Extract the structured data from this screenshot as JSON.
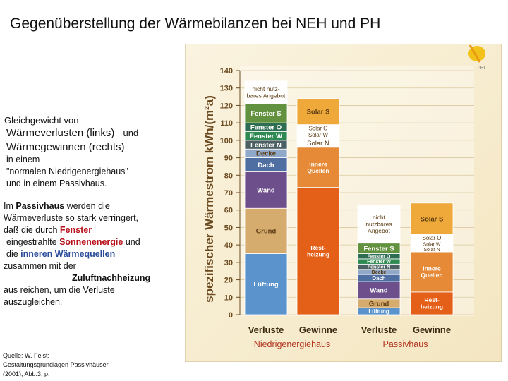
{
  "slide": {
    "title": "Gegenüberstellung der Wärmebilanzen bei NEH und  PH",
    "intro_line1": "Gleichgewicht von",
    "intro_line2a": "Wärmeverlusten (links)",
    "intro_line2b": "und",
    "intro_line3": "Wärmegewinnen (rechts)",
    "intro_line4": "in einem",
    "intro_line5": "\"normalen Niedrigenergiehaus\"",
    "intro_line6": "und in einem   Passivhaus.",
    "para": {
      "p1": "Im ",
      "p2": "Passivhaus",
      "p3": " werden die",
      "p4": "Wärmeverluste so stark  verringert,",
      "p5": "daß die durch ",
      "p6": "Fenster",
      "p7": "eingestrahlte ",
      "p8": "Sonnenenergie",
      "p9": " und",
      "p10": "die ",
      "p11": "inneren Wärmequellen",
      "p12": "zusammen mit der",
      "p13": "Zuluftnachheizung",
      "p14": "aus reichen, um die Verluste",
      "p15": "auszugleichen."
    },
    "source1": "Quelle: W. Feist:",
    "source2": "Gestaltungsgrundlagen Passivhäuser,",
    "source3": "(2001), Abb.3, p."
  },
  "logo_text": "PHI",
  "chart_data": {
    "type": "bar",
    "title": "",
    "ylabel": "spezifischer Wärmestrom kWh/(m²a)",
    "ylim": [
      0,
      140
    ],
    "yticks": [
      0,
      10,
      20,
      30,
      40,
      50,
      60,
      70,
      80,
      90,
      100,
      110,
      120,
      130,
      140
    ],
    "categories": [
      "Verluste",
      "Gewinne",
      "Verluste",
      "Gewinne"
    ],
    "groups": [
      "Niedrigenergiehaus",
      "Passivhaus"
    ],
    "columns": [
      {
        "category": "Verluste",
        "group": "Niedrigenergiehaus",
        "segments": [
          {
            "label": "Lüftung",
            "value": 35,
            "color": "#5b93cd"
          },
          {
            "label": "Grund",
            "value": 26,
            "color": "#d6ab6e"
          },
          {
            "label": "Wand",
            "value": 21,
            "color": "#6d4f8c"
          },
          {
            "label": "Dach",
            "value": 8,
            "color": "#4f6fa2"
          },
          {
            "label": "Decke",
            "value": 5,
            "color": "#90a9c9"
          },
          {
            "label": "Fenster N",
            "value": 5,
            "color": "#4c5f62"
          },
          {
            "label": "Fenster W",
            "value": 5,
            "color": "#2f8a52"
          },
          {
            "label": "Fenster O",
            "value": 5,
            "color": "#2d6e53"
          },
          {
            "label": "Fenster S",
            "value": 11,
            "color": "#62913f"
          },
          {
            "label": "nicht nutz-bares Angebot",
            "value": 13,
            "color": "#ffffff"
          }
        ]
      },
      {
        "category": "Gewinne",
        "group": "Niedrigenergiehaus",
        "segments": [
          {
            "label": "Rest-heizung",
            "value": 73,
            "color": "#e45f18"
          },
          {
            "label": "innere Quellen",
            "value": 23,
            "color": "#e68a38"
          },
          {
            "label": "Solar N",
            "value": 5,
            "color": "#ffffff"
          },
          {
            "label": "Solar W",
            "value": 4,
            "color": "#ffffff"
          },
          {
            "label": "Solar O",
            "value": 4,
            "color": "#ffffff"
          },
          {
            "label": "Solar S",
            "value": 15,
            "color": "#eea93a"
          }
        ]
      },
      {
        "category": "Verluste",
        "group": "Passivhaus",
        "segments": [
          {
            "label": "Lüftung",
            "value": 4,
            "color": "#5b93cd"
          },
          {
            "label": "Grund",
            "value": 5,
            "color": "#d6ab6e"
          },
          {
            "label": "Wand",
            "value": 10,
            "color": "#6d4f8c"
          },
          {
            "label": "Dach",
            "value": 4,
            "color": "#4f6fa2"
          },
          {
            "label": "Decke",
            "value": 3,
            "color": "#90a9c9"
          },
          {
            "label": "Fenster N",
            "value": 3,
            "color": "#4c5f62"
          },
          {
            "label": "Fenster W",
            "value": 3,
            "color": "#2f8a52"
          },
          {
            "label": "Fenster O",
            "value": 3,
            "color": "#2d6e53"
          },
          {
            "label": "Fenster S",
            "value": 6,
            "color": "#62913f"
          },
          {
            "label": "nicht nutzbares Angebot",
            "value": 22,
            "color": "#ffffff"
          }
        ]
      },
      {
        "category": "Gewinne",
        "group": "Passivhaus",
        "segments": [
          {
            "label": "Rest-heizung",
            "value": 13,
            "color": "#e45f18"
          },
          {
            "label": "innere Quellen",
            "value": 23,
            "color": "#e68a38"
          },
          {
            "label": "Solar N",
            "value": 3,
            "color": "#ffffff"
          },
          {
            "label": "Solar W",
            "value": 3,
            "color": "#ffffff"
          },
          {
            "label": "Solar O",
            "value": 4,
            "color": "#ffffff"
          },
          {
            "label": "Solar S",
            "value": 18,
            "color": "#eea93a"
          }
        ]
      }
    ]
  }
}
